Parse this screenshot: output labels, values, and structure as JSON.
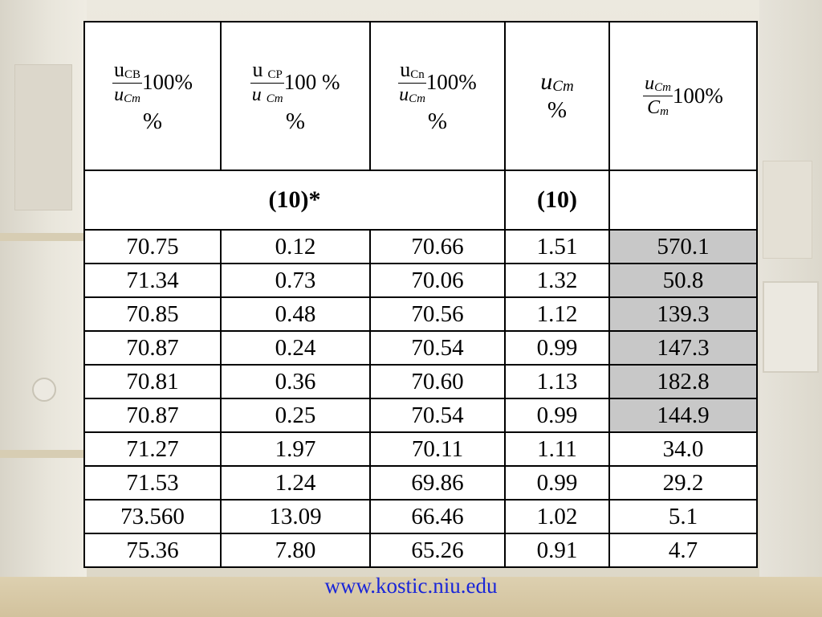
{
  "header": {
    "col1": {
      "num_var": "u",
      "num_sub": "CB",
      "den_var": "u",
      "den_sub": "Cm",
      "factor": "100%",
      "unit": "%"
    },
    "col2": {
      "num_var": "u",
      "num_sub": "CP",
      "den_var": "u",
      "den_sub": "Cm",
      "factor": "100 %",
      "unit": "%"
    },
    "col3": {
      "num_var": "u",
      "num_sub": "Cn",
      "den_var": "u",
      "den_sub": "Cm",
      "factor": "100%",
      "unit": "%"
    },
    "col4": {
      "var": "u",
      "sub": "Cm",
      "unit": "%"
    },
    "col5": {
      "num_var": "u",
      "num_sub": "Cm",
      "den_var": "C",
      "den_sub": "m",
      "factor": "100%"
    }
  },
  "units_row": {
    "group_label": "(10)*",
    "col4_label": "(10)",
    "col5_label": ""
  },
  "rows": [
    {
      "c1": "70.75",
      "c2": "0.12",
      "c3": "70.66",
      "c4": "1.51",
      "c5": "570.1"
    },
    {
      "c1": "71.34",
      "c2": "0.73",
      "c3": "70.06",
      "c4": "1.32",
      "c5": "50.8"
    },
    {
      "c1": "70.85",
      "c2": "0.48",
      "c3": "70.56",
      "c4": "1.12",
      "c5": "139.3"
    },
    {
      "c1": "70.87",
      "c2": "0.24",
      "c3": "70.54",
      "c4": "0.99",
      "c5": "147.3"
    },
    {
      "c1": "70.81",
      "c2": "0.36",
      "c3": "70.60",
      "c4": "1.13",
      "c5": "182.8"
    },
    {
      "c1": "70.87",
      "c2": "0.25",
      "c3": "70.54",
      "c4": "0.99",
      "c5": "144.9"
    },
    {
      "c1": "71.27",
      "c2": "1.97",
      "c3": "70.11",
      "c4": "1.11",
      "c5": "34.0"
    },
    {
      "c1": "71.53",
      "c2": "1.24",
      "c3": "69.86",
      "c4": "0.99",
      "c5": "29.2"
    },
    {
      "c1": "73.560",
      "c2": "13.09",
      "c3": "66.46",
      "c4": "1.02",
      "c5": "5.1"
    },
    {
      "c1": "75.36",
      "c2": "7.80",
      "c3": "65.26",
      "c4": "0.91",
      "c5": "4.7"
    }
  ],
  "shaded_rows_col5": [
    0,
    1,
    2,
    3,
    4,
    5
  ],
  "colors": {
    "shade": "#c8c8c8",
    "link": "#1a26d8"
  },
  "footer": {
    "link_text": "www.kostic.niu.edu"
  }
}
